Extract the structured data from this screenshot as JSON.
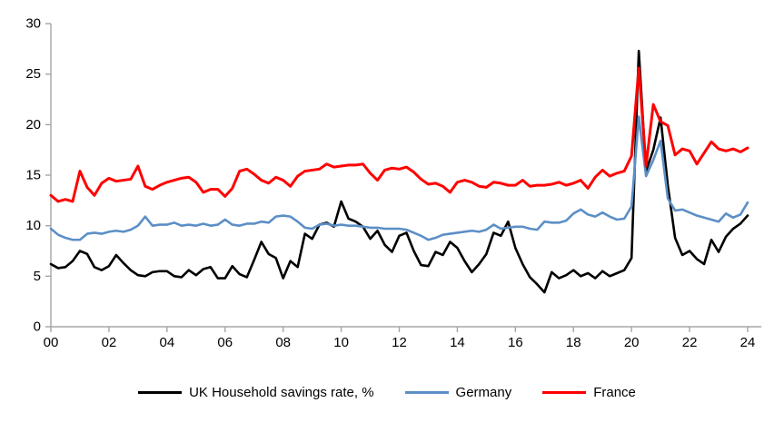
{
  "chart_data": {
    "type": "line",
    "title": "",
    "x_axis": {
      "description": "Years, quarterly data",
      "start": "2000 Q1",
      "end": "2024 Q1",
      "tick_labels": [
        "00",
        "02",
        "04",
        "06",
        "08",
        "10",
        "12",
        "14",
        "16",
        "18",
        "20",
        "22",
        "24"
      ]
    },
    "y_axis": {
      "ticks": [
        0,
        5,
        10,
        15,
        20,
        25,
        30
      ],
      "range": [
        0,
        30
      ]
    },
    "grid": false,
    "legend_position": "bottom",
    "axis_color": "#A6A6A6",
    "text_color": "#000000",
    "series": [
      {
        "name": "UK Household savings rate, %",
        "color": "#000000",
        "line_width": 2.6,
        "values": [
          6.2,
          5.8,
          5.9,
          6.5,
          7.5,
          7.2,
          5.9,
          5.6,
          6.0,
          7.1,
          6.3,
          5.6,
          5.1,
          5.0,
          5.4,
          5.5,
          5.5,
          5.0,
          4.9,
          5.6,
          5.1,
          5.7,
          5.9,
          4.8,
          4.8,
          6.0,
          5.2,
          4.9,
          6.6,
          8.4,
          7.2,
          6.8,
          4.8,
          6.5,
          5.9,
          9.2,
          8.7,
          10.1,
          10.3,
          9.9,
          12.4,
          10.7,
          10.4,
          9.9,
          8.7,
          9.5,
          8.1,
          7.4,
          9.0,
          9.3,
          7.5,
          6.1,
          6.0,
          7.4,
          7.1,
          8.4,
          7.8,
          6.5,
          5.4,
          6.2,
          7.2,
          9.3,
          9.0,
          10.4,
          7.8,
          6.2,
          4.9,
          4.2,
          3.4,
          5.4,
          4.8,
          5.1,
          5.6,
          5.0,
          5.3,
          4.8,
          5.5,
          5.0,
          5.3,
          5.6,
          6.8,
          27.3,
          15.4,
          17.5,
          20.7,
          14.0,
          8.8,
          7.1,
          7.5,
          6.7,
          6.2,
          8.6,
          7.4,
          8.9,
          9.7,
          10.2,
          11.0
        ]
      },
      {
        "name": "Germany",
        "color": "#5C8FC6",
        "line_width": 2.6,
        "values": [
          9.7,
          9.1,
          8.8,
          8.6,
          8.6,
          9.2,
          9.3,
          9.2,
          9.4,
          9.5,
          9.4,
          9.6,
          10.0,
          10.9,
          10.0,
          10.1,
          10.1,
          10.3,
          10.0,
          10.1,
          10.0,
          10.2,
          10.0,
          10.1,
          10.6,
          10.1,
          10.0,
          10.2,
          10.2,
          10.4,
          10.3,
          10.9,
          11.0,
          10.9,
          10.4,
          9.8,
          9.7,
          10.1,
          10.2,
          10.0,
          10.1,
          10.0,
          10.0,
          9.9,
          9.8,
          9.8,
          9.7,
          9.7,
          9.7,
          9.6,
          9.3,
          9.0,
          8.6,
          8.8,
          9.1,
          9.2,
          9.3,
          9.4,
          9.5,
          9.4,
          9.6,
          10.1,
          9.7,
          9.8,
          9.9,
          9.9,
          9.7,
          9.6,
          10.4,
          10.3,
          10.3,
          10.5,
          11.2,
          11.6,
          11.1,
          10.9,
          11.3,
          10.9,
          10.6,
          10.7,
          11.9,
          20.8,
          14.9,
          16.5,
          18.4,
          12.7,
          11.5,
          11.6,
          11.3,
          11.0,
          10.8,
          10.6,
          10.4,
          11.2,
          10.8,
          11.1,
          12.3
        ]
      },
      {
        "name": "France",
        "color": "#FF0000",
        "line_width": 3.0,
        "values": [
          13.0,
          12.4,
          12.6,
          12.4,
          15.4,
          13.8,
          13.0,
          14.2,
          14.7,
          14.4,
          14.5,
          14.6,
          15.9,
          13.9,
          13.6,
          14.0,
          14.3,
          14.5,
          14.7,
          14.8,
          14.3,
          13.3,
          13.6,
          13.6,
          12.9,
          13.7,
          15.4,
          15.6,
          15.1,
          14.5,
          14.2,
          14.8,
          14.5,
          13.9,
          14.9,
          15.4,
          15.5,
          15.6,
          16.1,
          15.8,
          15.9,
          16.0,
          16.0,
          16.1,
          15.2,
          14.5,
          15.5,
          15.7,
          15.6,
          15.8,
          15.3,
          14.6,
          14.1,
          14.2,
          13.9,
          13.3,
          14.3,
          14.5,
          14.3,
          13.9,
          13.8,
          14.3,
          14.2,
          14.0,
          14.0,
          14.5,
          13.9,
          14.0,
          14.0,
          14.1,
          14.3,
          14.0,
          14.2,
          14.5,
          13.7,
          14.8,
          15.5,
          14.9,
          15.2,
          15.4,
          16.9,
          25.6,
          15.9,
          22.0,
          20.3,
          19.9,
          17.0,
          17.6,
          17.4,
          16.1,
          17.2,
          18.3,
          17.6,
          17.4,
          17.6,
          17.3,
          17.7
        ]
      }
    ]
  },
  "legend": {
    "items": [
      {
        "label": "UK Household savings rate, %"
      },
      {
        "label": "Germany"
      },
      {
        "label": "France"
      }
    ]
  }
}
